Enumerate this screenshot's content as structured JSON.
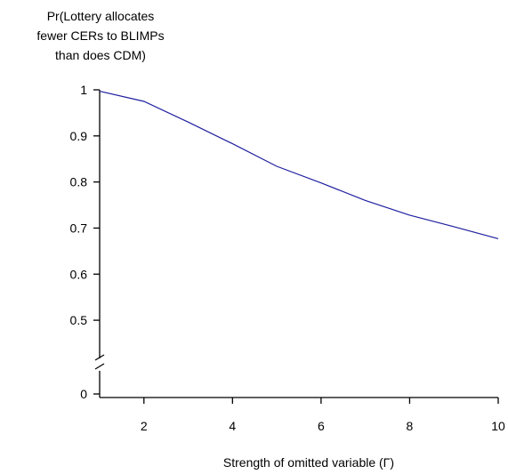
{
  "chart_data": {
    "type": "line",
    "ylabel_lines": [
      "Pr(Lottery allocates",
      "fewer CERs to BLIMPs",
      "than does CDM)"
    ],
    "xlabel": "Strength of omitted variable (Γ)",
    "xlim": [
      1,
      10
    ],
    "ylim": [
      0.45,
      1.0
    ],
    "y_axis_break": true,
    "x_ticks": [
      2,
      4,
      6,
      8,
      10
    ],
    "y_ticks": [
      "1",
      "0.9",
      "0.8",
      "0.7",
      "0.6",
      "0.5"
    ],
    "y_ticks_below_break": [
      "0"
    ],
    "x": [
      1,
      2,
      3,
      4,
      5,
      6,
      7,
      8,
      9,
      10
    ],
    "series": [
      {
        "values": [
          0.997,
          0.975,
          0.93,
          0.883,
          0.834,
          0.798,
          0.76,
          0.728,
          0.703,
          0.677
        ],
        "color": "#1f1fa0"
      }
    ],
    "grid": false
  }
}
